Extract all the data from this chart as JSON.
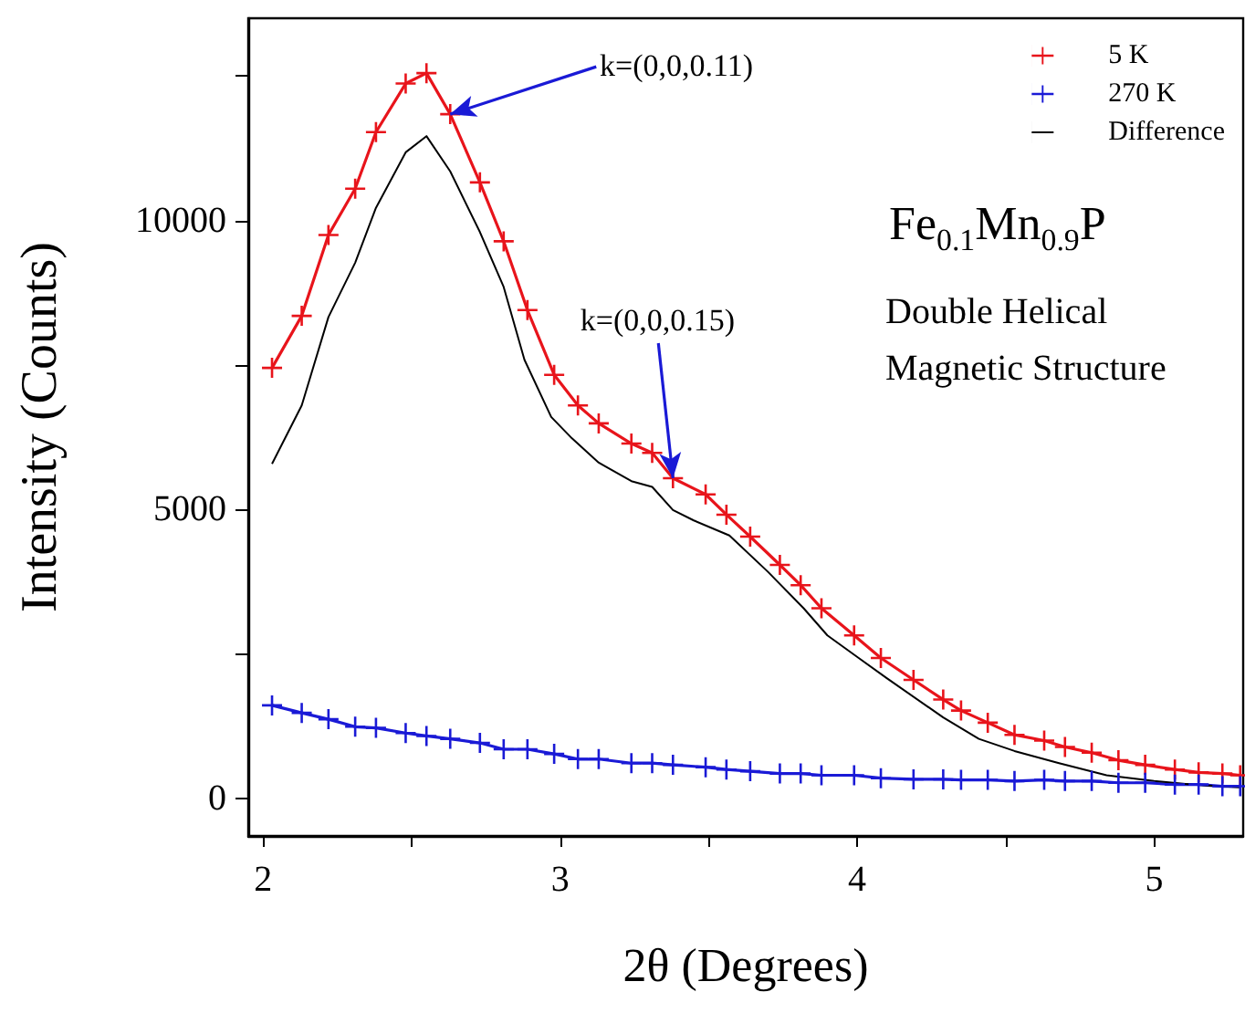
{
  "chart_data": {
    "type": "line",
    "xlabel": "2θ (Degrees)",
    "ylabel": "Intensity (Counts)",
    "xlim": [
      1.95,
      5.3
    ],
    "ylim": [
      -650,
      13500
    ],
    "xticks": [
      2,
      {
        "value": 2.5,
        "label": null
      },
      3,
      {
        "value": 3.5,
        "label": null
      },
      4,
      {
        "value": 4.5,
        "label": null
      },
      5
    ],
    "yticks": [
      0,
      {
        "value": 2500,
        "label": null
      },
      5000,
      {
        "value": 7500,
        "label": null
      },
      10000,
      {
        "value": 12500,
        "label": null
      }
    ],
    "grid": false,
    "legend": "top right",
    "line_style": "solid",
    "series": [
      {
        "name": "5 K",
        "color": "#e8141b",
        "marker": "cross",
        "x": [
          2.03,
          2.13,
          2.22,
          2.31,
          2.38,
          2.48,
          2.55,
          2.63,
          2.73,
          2.81,
          2.89,
          2.98,
          3.06,
          3.13,
          3.24,
          3.31,
          3.38,
          3.49,
          3.56,
          3.64,
          3.74,
          3.81,
          3.88,
          3.99,
          4.08,
          4.19,
          4.29,
          4.35,
          4.44,
          4.53,
          4.63,
          4.7,
          4.79,
          4.88,
          4.97,
          5.07,
          5.15,
          5.23,
          5.29
        ],
        "values": [
          7450,
          8350,
          9750,
          10550,
          11530,
          12370,
          12550,
          11840,
          10660,
          9640,
          8450,
          7330,
          6800,
          6490,
          6140,
          5980,
          5540,
          5260,
          4910,
          4530,
          4040,
          3690,
          3290,
          2820,
          2430,
          2050,
          1710,
          1520,
          1310,
          1100,
          1000,
          890,
          790,
          660,
          580,
          500,
          450,
          430,
          400
        ]
      },
      {
        "name": "270 K",
        "color": "#1a1ad6",
        "marker": "cross",
        "x": [
          2.03,
          2.13,
          2.22,
          2.31,
          2.38,
          2.48,
          2.55,
          2.63,
          2.73,
          2.81,
          2.89,
          2.98,
          3.06,
          3.13,
          3.24,
          3.31,
          3.38,
          3.49,
          3.56,
          3.64,
          3.74,
          3.81,
          3.88,
          3.99,
          4.08,
          4.19,
          4.29,
          4.35,
          4.44,
          4.53,
          4.63,
          4.7,
          4.79,
          4.88,
          4.97,
          5.07,
          5.15,
          5.23,
          5.29
        ],
        "values": [
          1610,
          1480,
          1370,
          1240,
          1220,
          1130,
          1080,
          1030,
          960,
          850,
          850,
          770,
          680,
          680,
          610,
          610,
          580,
          540,
          500,
          470,
          430,
          430,
          400,
          400,
          350,
          330,
          330,
          320,
          320,
          300,
          320,
          300,
          300,
          270,
          270,
          240,
          240,
          210,
          210
        ]
      },
      {
        "name": "Difference",
        "color": "#000000",
        "marker": "none",
        "x": [
          2.03,
          2.13,
          2.22,
          2.31,
          2.38,
          2.48,
          2.55,
          2.63,
          2.73,
          2.81,
          2.88,
          2.97,
          3.04,
          3.13,
          3.24,
          3.31,
          3.38,
          3.45,
          3.57,
          3.7,
          3.82,
          3.9,
          4.0,
          4.1,
          4.29,
          4.41,
          4.53,
          4.68,
          4.84,
          5.0,
          5.13,
          5.29
        ],
        "values": [
          5790,
          6800,
          8330,
          9270,
          10220,
          11180,
          11460,
          10850,
          9800,
          8850,
          7590,
          6600,
          6230,
          5810,
          5490,
          5390,
          4990,
          4810,
          4550,
          3920,
          3290,
          2820,
          2450,
          2080,
          1400,
          1030,
          820,
          610,
          400,
          300,
          240,
          190
        ]
      }
    ],
    "annotations": [
      {
        "text": "k=(0,0,0.11)",
        "x": 2.63,
        "y": 11840
      },
      {
        "text": "k=(0,0,0.15)",
        "x": 3.38,
        "y": 5540
      },
      "Fe$_{0.1}$Mn$_{0.9}$P",
      "Double Helical",
      "Magnetic Structure"
    ]
  }
}
